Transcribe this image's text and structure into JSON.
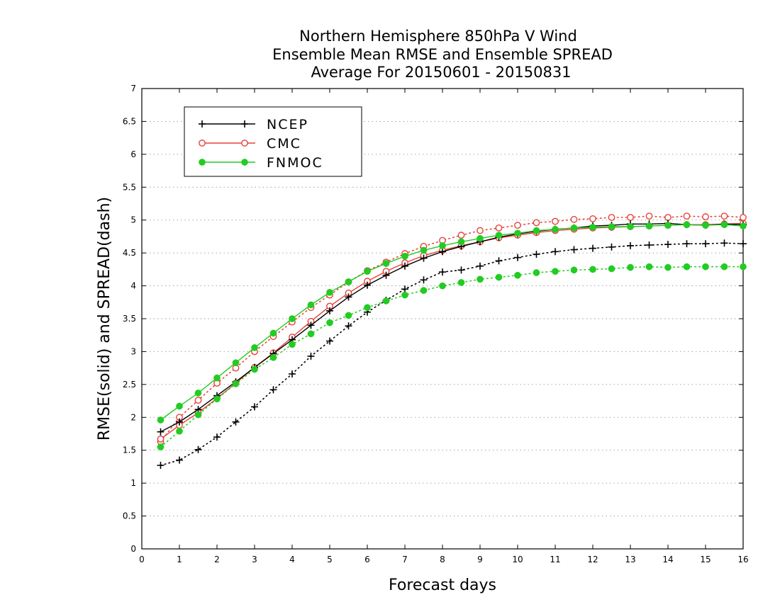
{
  "chart_data": {
    "type": "line",
    "title_lines": [
      "Northern Hemisphere 850hPa V Wind",
      "Ensemble Mean RMSE and Ensemble SPREAD",
      "Average For 20150601 - 20150831"
    ],
    "xlabel": "Forecast days",
    "ylabel": "RMSE(solid) and SPREAD(dash)",
    "xlim": [
      0,
      16
    ],
    "ylim": [
      0,
      7
    ],
    "xticks": [
      0,
      1,
      2,
      3,
      4,
      5,
      6,
      7,
      8,
      9,
      10,
      11,
      12,
      13,
      14,
      15,
      16
    ],
    "yticks": [
      "0",
      "0.5",
      "1",
      "1.5",
      "2",
      "2.5",
      "3",
      "3.5",
      "4",
      "4.5",
      "5",
      "5.5",
      "6",
      "6.5",
      "7"
    ],
    "grid": "horizontal dotted",
    "legend_position": "top-left",
    "x": [
      0.5,
      1,
      1.5,
      2,
      2.5,
      3,
      3.5,
      4,
      4.5,
      5,
      5.5,
      6,
      6.5,
      7,
      7.5,
      8,
      8.5,
      9,
      9.5,
      10,
      10.5,
      11,
      11.5,
      12,
      12.5,
      13,
      13.5,
      14,
      14.5,
      15,
      15.5,
      16
    ],
    "series": [
      {
        "name": "NCEP",
        "color": "#000000",
        "marker": "plus",
        "rmse": [
          1.78,
          1.93,
          2.12,
          2.33,
          2.54,
          2.76,
          2.97,
          3.18,
          3.4,
          3.62,
          3.83,
          4.01,
          4.16,
          4.3,
          4.42,
          4.52,
          4.6,
          4.67,
          4.74,
          4.79,
          4.83,
          4.86,
          4.88,
          4.91,
          4.92,
          4.94,
          4.94,
          4.95,
          4.93,
          4.92,
          4.94,
          4.93
        ],
        "spread": [
          1.27,
          1.35,
          1.51,
          1.7,
          1.93,
          2.16,
          2.42,
          2.66,
          2.93,
          3.16,
          3.39,
          3.6,
          3.78,
          3.95,
          4.09,
          4.21,
          4.24,
          4.3,
          4.38,
          4.43,
          4.48,
          4.52,
          4.55,
          4.57,
          4.59,
          4.61,
          4.62,
          4.63,
          4.64,
          4.64,
          4.65,
          4.64
        ]
      },
      {
        "name": "CMC",
        "color": "#e8403a",
        "marker": "open-circle",
        "rmse": [
          1.67,
          1.88,
          2.07,
          2.29,
          2.52,
          2.76,
          2.98,
          3.22,
          3.46,
          3.69,
          3.89,
          4.07,
          4.22,
          4.35,
          4.46,
          4.54,
          4.61,
          4.67,
          4.73,
          4.77,
          4.81,
          4.84,
          4.86,
          4.88,
          4.89,
          4.9,
          4.91,
          4.92,
          4.93,
          4.93,
          4.94,
          4.95
        ],
        "spread": [
          1.63,
          2.0,
          2.26,
          2.52,
          2.75,
          3.0,
          3.23,
          3.45,
          3.67,
          3.86,
          4.06,
          4.23,
          4.36,
          4.49,
          4.6,
          4.69,
          4.77,
          4.84,
          4.88,
          4.92,
          4.96,
          4.98,
          5.01,
          5.02,
          5.04,
          5.04,
          5.06,
          5.04,
          5.06,
          5.05,
          5.06,
          5.04
        ]
      },
      {
        "name": "FNMOC",
        "color": "#22cc22",
        "marker": "filled-circle",
        "rmse": [
          1.96,
          2.17,
          2.37,
          2.6,
          2.83,
          3.06,
          3.28,
          3.5,
          3.71,
          3.9,
          4.06,
          4.22,
          4.34,
          4.45,
          4.54,
          4.61,
          4.67,
          4.72,
          4.77,
          4.8,
          4.84,
          4.86,
          4.88,
          4.89,
          4.9,
          4.9,
          4.91,
          4.92,
          4.93,
          4.92,
          4.93,
          4.91
        ],
        "spread": [
          1.55,
          1.79,
          2.04,
          2.28,
          2.51,
          2.73,
          2.91,
          3.11,
          3.27,
          3.44,
          3.55,
          3.67,
          3.77,
          3.86,
          3.93,
          4.0,
          4.05,
          4.1,
          4.13,
          4.16,
          4.2,
          4.22,
          4.24,
          4.25,
          4.26,
          4.28,
          4.29,
          4.28,
          4.29,
          4.29,
          4.29,
          4.29
        ]
      }
    ]
  }
}
